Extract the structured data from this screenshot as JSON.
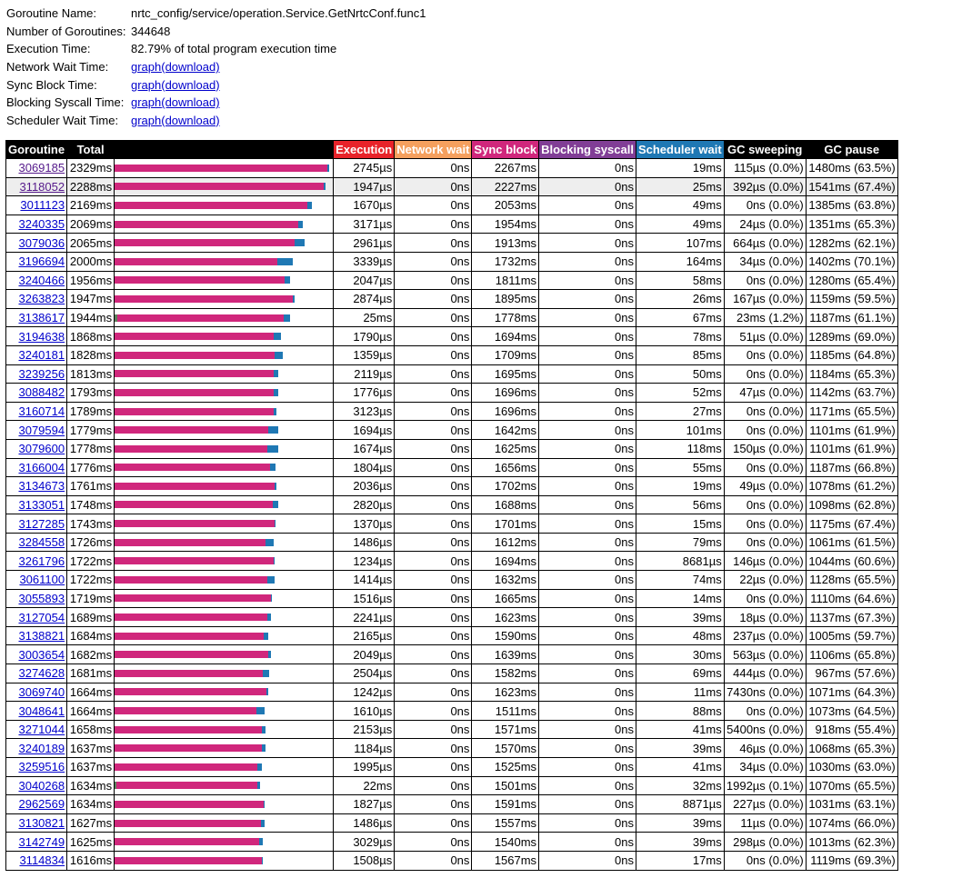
{
  "info": [
    {
      "label": "Goroutine Name:",
      "value": "nrtc_config/service/operation.Service.GetNrtcConf.func1"
    },
    {
      "label": "Number of Goroutines:",
      "value": "344648"
    },
    {
      "label": "Execution Time:",
      "value": "82.79% of total program execution time"
    },
    {
      "label": "Network Wait Time:",
      "link": "graph",
      "download": "(download)"
    },
    {
      "label": "Sync Block Time:",
      "link": "graph",
      "download": "(download)"
    },
    {
      "label": "Blocking Syscall Time:",
      "link": "graph",
      "download": "(download)"
    },
    {
      "label": "Scheduler Wait Time:",
      "link": "graph",
      "download": "(download)"
    }
  ],
  "table": {
    "columns": [
      "Goroutine",
      "Total",
      "Execution",
      "Network wait",
      "Sync block",
      "Blocking syscall",
      "Scheduler wait",
      "GC sweeping",
      "GC pause"
    ],
    "rows": [
      [
        "3069185",
        "2329ms",
        "2745µs",
        "0ns",
        "2267ms",
        "0ns",
        "19ms",
        "115µs (0.0%)",
        "1480ms (63.5%)"
      ],
      [
        "3118052",
        "2288ms",
        "1947µs",
        "0ns",
        "2227ms",
        "0ns",
        "25ms",
        "392µs (0.0%)",
        "1541ms (67.4%)"
      ],
      [
        "3011123",
        "2169ms",
        "1670µs",
        "0ns",
        "2053ms",
        "0ns",
        "49ms",
        "0ns (0.0%)",
        "1385ms (63.8%)"
      ],
      [
        "3240335",
        "2069ms",
        "3171µs",
        "0ns",
        "1954ms",
        "0ns",
        "49ms",
        "24µs (0.0%)",
        "1351ms (65.3%)"
      ],
      [
        "3079036",
        "2065ms",
        "2961µs",
        "0ns",
        "1913ms",
        "0ns",
        "107ms",
        "664µs (0.0%)",
        "1282ms (62.1%)"
      ],
      [
        "3196694",
        "2000ms",
        "3339µs",
        "0ns",
        "1732ms",
        "0ns",
        "164ms",
        "34µs (0.0%)",
        "1402ms (70.1%)"
      ],
      [
        "3240466",
        "1956ms",
        "2047µs",
        "0ns",
        "1811ms",
        "0ns",
        "58ms",
        "0ns (0.0%)",
        "1280ms (65.4%)"
      ],
      [
        "3263823",
        "1947ms",
        "2874µs",
        "0ns",
        "1895ms",
        "0ns",
        "26ms",
        "167µs (0.0%)",
        "1159ms (59.5%)"
      ],
      [
        "3138617",
        "1944ms",
        "25ms",
        "0ns",
        "1778ms",
        "0ns",
        "67ms",
        "23ms (1.2%)",
        "1187ms (61.1%)"
      ],
      [
        "3194638",
        "1868ms",
        "1790µs",
        "0ns",
        "1694ms",
        "0ns",
        "78ms",
        "51µs (0.0%)",
        "1289ms (69.0%)"
      ],
      [
        "3240181",
        "1828ms",
        "1359µs",
        "0ns",
        "1709ms",
        "0ns",
        "85ms",
        "0ns (0.0%)",
        "1185ms (64.8%)"
      ],
      [
        "3239256",
        "1813ms",
        "2119µs",
        "0ns",
        "1695ms",
        "0ns",
        "50ms",
        "0ns (0.0%)",
        "1184ms (65.3%)"
      ],
      [
        "3088482",
        "1793ms",
        "1776µs",
        "0ns",
        "1696ms",
        "0ns",
        "52ms",
        "47µs (0.0%)",
        "1142ms (63.7%)"
      ],
      [
        "3160714",
        "1789ms",
        "3123µs",
        "0ns",
        "1696ms",
        "0ns",
        "27ms",
        "0ns (0.0%)",
        "1171ms (65.5%)"
      ],
      [
        "3079594",
        "1779ms",
        "1694µs",
        "0ns",
        "1642ms",
        "0ns",
        "101ms",
        "0ns (0.0%)",
        "1101ms (61.9%)"
      ],
      [
        "3079600",
        "1778ms",
        "1674µs",
        "0ns",
        "1625ms",
        "0ns",
        "118ms",
        "150µs (0.0%)",
        "1101ms (61.9%)"
      ],
      [
        "3166004",
        "1776ms",
        "1804µs",
        "0ns",
        "1656ms",
        "0ns",
        "55ms",
        "0ns (0.0%)",
        "1187ms (66.8%)"
      ],
      [
        "3134673",
        "1761ms",
        "2036µs",
        "0ns",
        "1702ms",
        "0ns",
        "19ms",
        "49µs (0.0%)",
        "1078ms (61.2%)"
      ],
      [
        "3133051",
        "1748ms",
        "2820µs",
        "0ns",
        "1688ms",
        "0ns",
        "56ms",
        "0ns (0.0%)",
        "1098ms (62.8%)"
      ],
      [
        "3127285",
        "1743ms",
        "1370µs",
        "0ns",
        "1701ms",
        "0ns",
        "15ms",
        "0ns (0.0%)",
        "1175ms (67.4%)"
      ],
      [
        "3284558",
        "1726ms",
        "1486µs",
        "0ns",
        "1612ms",
        "0ns",
        "79ms",
        "0ns (0.0%)",
        "1061ms (61.5%)"
      ],
      [
        "3261796",
        "1722ms",
        "1234µs",
        "0ns",
        "1694ms",
        "0ns",
        "8681µs",
        "146µs (0.0%)",
        "1044ms (60.6%)"
      ],
      [
        "3061100",
        "1722ms",
        "1414µs",
        "0ns",
        "1632ms",
        "0ns",
        "74ms",
        "22µs (0.0%)",
        "1128ms (65.5%)"
      ],
      [
        "3055893",
        "1719ms",
        "1516µs",
        "0ns",
        "1665ms",
        "0ns",
        "14ms",
        "0ns (0.0%)",
        "1110ms (64.6%)"
      ],
      [
        "3127054",
        "1689ms",
        "2241µs",
        "0ns",
        "1623ms",
        "0ns",
        "39ms",
        "18µs (0.0%)",
        "1137ms (67.3%)"
      ],
      [
        "3138821",
        "1684ms",
        "2165µs",
        "0ns",
        "1590ms",
        "0ns",
        "48ms",
        "237µs (0.0%)",
        "1005ms (59.7%)"
      ],
      [
        "3003654",
        "1682ms",
        "2049µs",
        "0ns",
        "1639ms",
        "0ns",
        "30ms",
        "563µs (0.0%)",
        "1106ms (65.8%)"
      ],
      [
        "3274628",
        "1681ms",
        "2504µs",
        "0ns",
        "1582ms",
        "0ns",
        "69ms",
        "444µs (0.0%)",
        "967ms (57.6%)"
      ],
      [
        "3069740",
        "1664ms",
        "1242µs",
        "0ns",
        "1623ms",
        "0ns",
        "11ms",
        "7430ns (0.0%)",
        "1071ms (64.3%)"
      ],
      [
        "3048641",
        "1664ms",
        "1610µs",
        "0ns",
        "1511ms",
        "0ns",
        "88ms",
        "0ns (0.0%)",
        "1073ms (64.5%)"
      ],
      [
        "3271044",
        "1658ms",
        "2153µs",
        "0ns",
        "1571ms",
        "0ns",
        "41ms",
        "5400ns (0.0%)",
        "918ms (55.4%)"
      ],
      [
        "3240189",
        "1637ms",
        "1184µs",
        "0ns",
        "1570ms",
        "0ns",
        "39ms",
        "46µs (0.0%)",
        "1068ms (65.3%)"
      ],
      [
        "3259516",
        "1637ms",
        "1995µs",
        "0ns",
        "1525ms",
        "0ns",
        "41ms",
        "34µs (0.0%)",
        "1030ms (63.0%)"
      ],
      [
        "3040268",
        "1634ms",
        "22ms",
        "0ns",
        "1501ms",
        "0ns",
        "32ms",
        "1992µs (0.1%)",
        "1070ms (65.5%)"
      ],
      [
        "2962569",
        "1634ms",
        "1827µs",
        "0ns",
        "1591ms",
        "0ns",
        "8871µs",
        "227µs (0.0%)",
        "1031ms (63.1%)"
      ],
      [
        "3130821",
        "1627ms",
        "1486µs",
        "0ns",
        "1557ms",
        "0ns",
        "39ms",
        "11µs (0.0%)",
        "1074ms (66.0%)"
      ],
      [
        "3142749",
        "1625ms",
        "3029µs",
        "0ns",
        "1540ms",
        "0ns",
        "39ms",
        "298µs (0.0%)",
        "1013ms (62.3%)"
      ],
      [
        "3114834",
        "1616ms",
        "1508µs",
        "0ns",
        "1567ms",
        "0ns",
        "17ms",
        "0ns (0.0%)",
        "1119ms (69.3%)"
      ]
    ]
  }
}
